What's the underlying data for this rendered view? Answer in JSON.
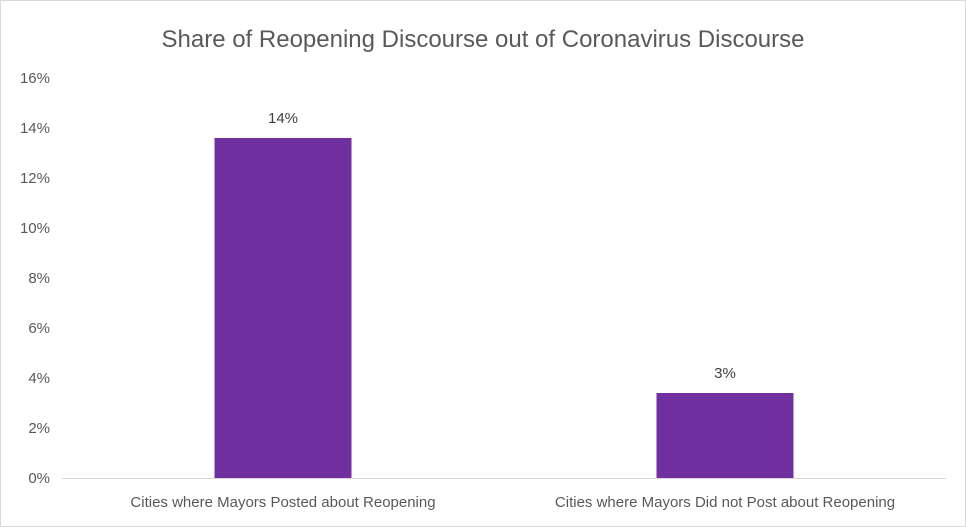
{
  "chart_data": {
    "type": "bar",
    "title": "Share of Reopening Discourse out of Coronavirus Discourse",
    "xlabel": "",
    "ylabel": "",
    "categories": [
      "Cities where Mayors Posted about Reopening",
      "Cities where Mayors Did not Post about Reopening"
    ],
    "values": [
      13.6,
      3.4
    ],
    "data_labels": [
      "14%",
      "3%"
    ],
    "ylim": [
      0,
      16
    ],
    "yticks": [
      0,
      2,
      4,
      6,
      8,
      10,
      12,
      14,
      16
    ],
    "ytick_labels": [
      "0%",
      "2%",
      "4%",
      "6%",
      "8%",
      "10%",
      "12%",
      "14%",
      "16%"
    ],
    "grid": false,
    "legend": "none",
    "bar_color": "#7030a0"
  }
}
